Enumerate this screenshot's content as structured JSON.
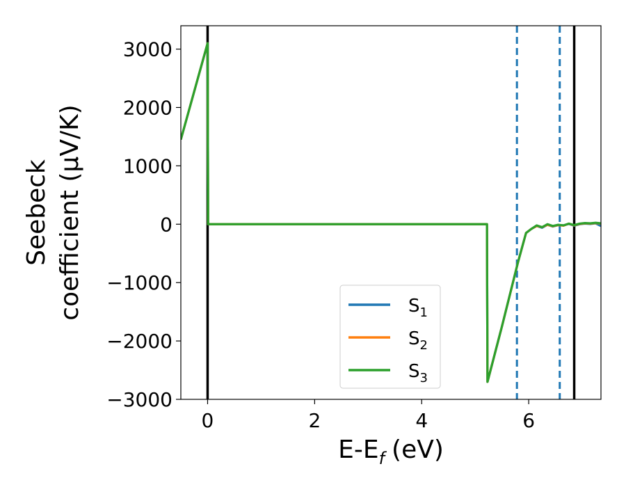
{
  "chart_data": {
    "type": "line",
    "xlabel": "E-E",
    "xlabel_sub": "f",
    "xlabel_unit": "(eV)",
    "ylabel_line1": "Seebeck",
    "ylabel_line2": "coefficient  (μV/K)",
    "xlim": [
      -0.5,
      7.35
    ],
    "ylim": [
      -3000,
      3400
    ],
    "x_ticks": [
      0,
      2,
      4,
      6
    ],
    "x_tick_labels": [
      "0",
      "2",
      "4",
      "6"
    ],
    "y_ticks": [
      -3000,
      -2000,
      -1000,
      0,
      1000,
      2000,
      3000
    ],
    "y_tick_labels": [
      "−3000",
      "−2000",
      "−1000",
      "0",
      "1000",
      "2000",
      "3000"
    ],
    "grid": false,
    "legend_position": "lower-center",
    "series": [
      {
        "name": "S",
        "subscript": "1",
        "color": "#1f77b4",
        "x": [
          -0.5,
          0.0,
          0.01,
          1.0,
          2.0,
          3.0,
          4.0,
          5.22,
          5.23,
          5.5,
          5.8,
          5.95,
          6.05,
          6.15,
          6.25,
          6.35,
          6.45,
          6.55,
          6.65,
          6.75,
          6.85,
          6.95,
          7.05,
          7.15,
          7.25,
          7.35
        ],
        "y": [
          1450,
          3100,
          0,
          0,
          0,
          0,
          0,
          0,
          -2700,
          -1750,
          -650,
          -150,
          -80,
          -30,
          -60,
          -10,
          -40,
          -15,
          -20,
          5,
          -25,
          0,
          10,
          5,
          15,
          -30
        ]
      },
      {
        "name": "S",
        "subscript": "2",
        "color": "#ff7f0e",
        "x": [
          -0.5,
          0.0,
          0.01,
          1.0,
          2.0,
          3.0,
          4.0,
          5.22,
          5.23,
          5.5,
          5.8,
          5.95,
          6.05,
          6.15,
          6.25,
          6.35,
          6.45,
          6.55,
          6.65,
          6.75,
          6.85,
          6.95,
          7.05,
          7.15,
          7.25,
          7.35
        ],
        "y": [
          1450,
          3100,
          0,
          0,
          0,
          0,
          0,
          0,
          -2700,
          -1750,
          -650,
          -150,
          -80,
          -30,
          -50,
          -10,
          -35,
          -15,
          -25,
          10,
          -20,
          5,
          15,
          10,
          20,
          10
        ]
      },
      {
        "name": "S",
        "subscript": "3",
        "color": "#2ca02c",
        "x": [
          -0.5,
          0.0,
          0.01,
          1.0,
          2.0,
          3.0,
          4.0,
          5.22,
          5.23,
          5.5,
          5.8,
          5.95,
          6.05,
          6.15,
          6.25,
          6.35,
          6.45,
          6.55,
          6.65,
          6.75,
          6.85,
          6.95,
          7.05,
          7.15,
          7.25,
          7.35
        ],
        "y": [
          1450,
          3100,
          0,
          0,
          0,
          0,
          0,
          0,
          -2700,
          -1750,
          -650,
          -150,
          -80,
          -20,
          -50,
          0,
          -30,
          -10,
          -20,
          10,
          -15,
          10,
          20,
          15,
          25,
          15
        ]
      }
    ],
    "vertical_lines": [
      {
        "x": 0.0,
        "style": "solid",
        "color": "#000000"
      },
      {
        "x": 5.78,
        "style": "dashed",
        "color": "#1f77b4"
      },
      {
        "x": 6.58,
        "style": "dashed",
        "color": "#1f77b4"
      },
      {
        "x": 6.85,
        "style": "solid",
        "color": "#000000"
      }
    ]
  }
}
